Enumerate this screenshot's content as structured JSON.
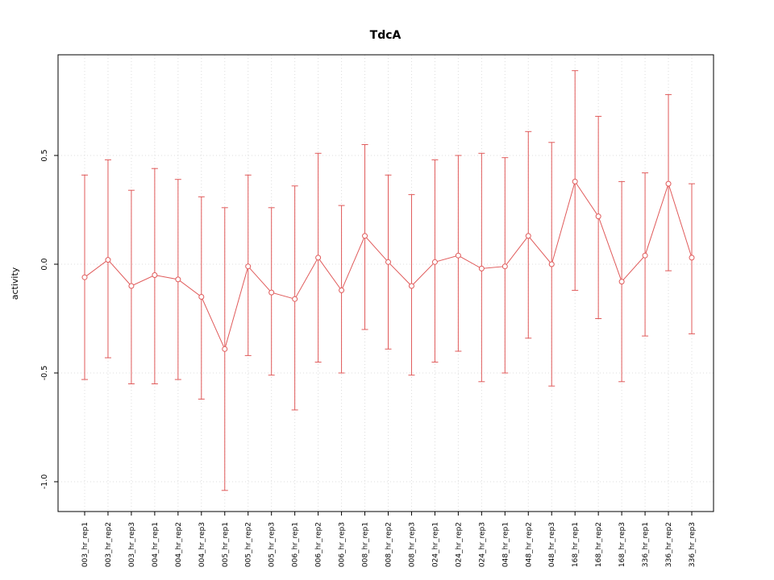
{
  "chart_data": {
    "type": "line",
    "title": "TdcA",
    "xlabel": "",
    "ylabel": "activity",
    "ylim": [
      -1.12,
      0.96
    ],
    "grid": true,
    "legend": false,
    "error_bars": true,
    "marker": "open-circle",
    "yticks": [
      0.5,
      0.0,
      -0.5,
      -1.0
    ],
    "ytick_labels": [
      "0.5",
      "0.0",
      "-0.5",
      "-1.0"
    ],
    "categories": [
      "003_hr_rep1",
      "003_hr_rep2",
      "003_hr_rep3",
      "004_hr_rep1",
      "004_hr_rep2",
      "004_hr_rep3",
      "005_hr_rep1",
      "005_hr_rep2",
      "005_hr_rep3",
      "006_hr_rep1",
      "006_hr_rep2",
      "006_hr_rep3",
      "008_hr_rep1",
      "008_hr_rep2",
      "008_hr_rep3",
      "024_hr_rep1",
      "024_hr_rep2",
      "024_hr_rep3",
      "048_hr_rep1",
      "048_hr_rep2",
      "048_hr_rep3",
      "168_hr_rep1",
      "168_hr_rep2",
      "168_hr_rep3",
      "336_hr_rep1",
      "336_hr_rep2",
      "336_hr_rep3"
    ],
    "series": [
      {
        "name": "activity",
        "values": [
          -0.06,
          0.02,
          -0.1,
          -0.05,
          -0.07,
          -0.15,
          -0.39,
          -0.01,
          -0.13,
          -0.16,
          0.03,
          -0.12,
          0.13,
          0.01,
          -0.1,
          0.01,
          0.04,
          -0.02,
          -0.01,
          0.13,
          0.0,
          0.38,
          0.22,
          -0.08,
          0.04,
          0.37,
          0.03
        ],
        "error_low": [
          -0.53,
          -0.43,
          -0.55,
          -0.55,
          -0.53,
          -0.62,
          -1.04,
          -0.42,
          -0.51,
          -0.67,
          -0.45,
          -0.5,
          -0.3,
          -0.39,
          -0.51,
          -0.45,
          -0.4,
          -0.54,
          -0.5,
          -0.34,
          -0.56,
          -0.12,
          -0.25,
          -0.54,
          -0.33,
          -0.03,
          -0.32
        ],
        "error_high": [
          0.41,
          0.48,
          0.34,
          0.44,
          0.39,
          0.31,
          0.26,
          0.41,
          0.26,
          0.36,
          0.51,
          0.27,
          0.55,
          0.41,
          0.32,
          0.48,
          0.5,
          0.51,
          0.49,
          0.61,
          0.56,
          0.89,
          0.68,
          0.38,
          0.42,
          0.78,
          0.37
        ]
      }
    ],
    "colors": {
      "series": "#e05a5a",
      "grid": "#dcdcdc",
      "axis": "#000000",
      "background": "#ffffff",
      "marker_fill": "#ffffff"
    }
  }
}
